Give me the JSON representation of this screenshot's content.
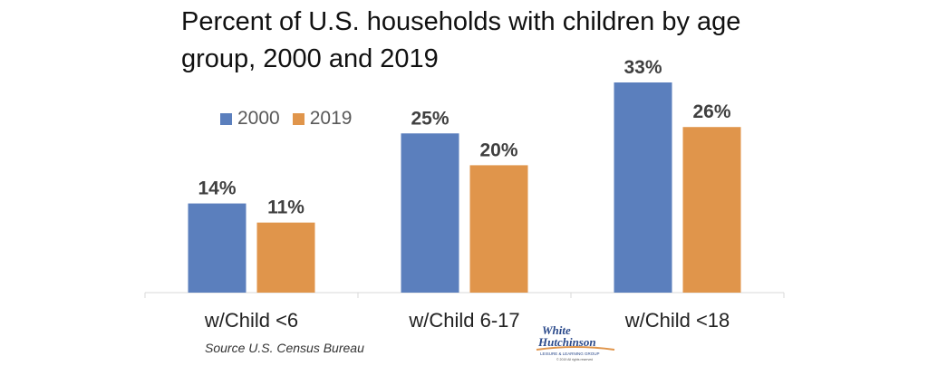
{
  "chart_data": {
    "type": "bar",
    "title": "Percent of U.S. households with children by age group, 2000 and 2019",
    "categories": [
      "w/Child <6",
      "w/Child 6-17",
      "w/Child <18"
    ],
    "series": [
      {
        "name": "2000",
        "values": [
          14,
          25,
          33
        ],
        "color": "#5b7fbd"
      },
      {
        "name": "2019",
        "values": [
          11,
          20,
          26
        ],
        "color": "#e0954b"
      }
    ],
    "data_labels": [
      [
        "14%",
        "25%",
        "33%"
      ],
      [
        "11%",
        "20%",
        "26%"
      ]
    ],
    "ylim": [
      0,
      33
    ],
    "legend_position": "top-left",
    "grid": false
  },
  "source": "Source U.S. Census Bureau",
  "logo": {
    "line1": "White",
    "line2": "Hutchinson",
    "tagline": "LEISURE & LEARNING GROUP",
    "copyright": "© 2019 All rights reserved"
  }
}
